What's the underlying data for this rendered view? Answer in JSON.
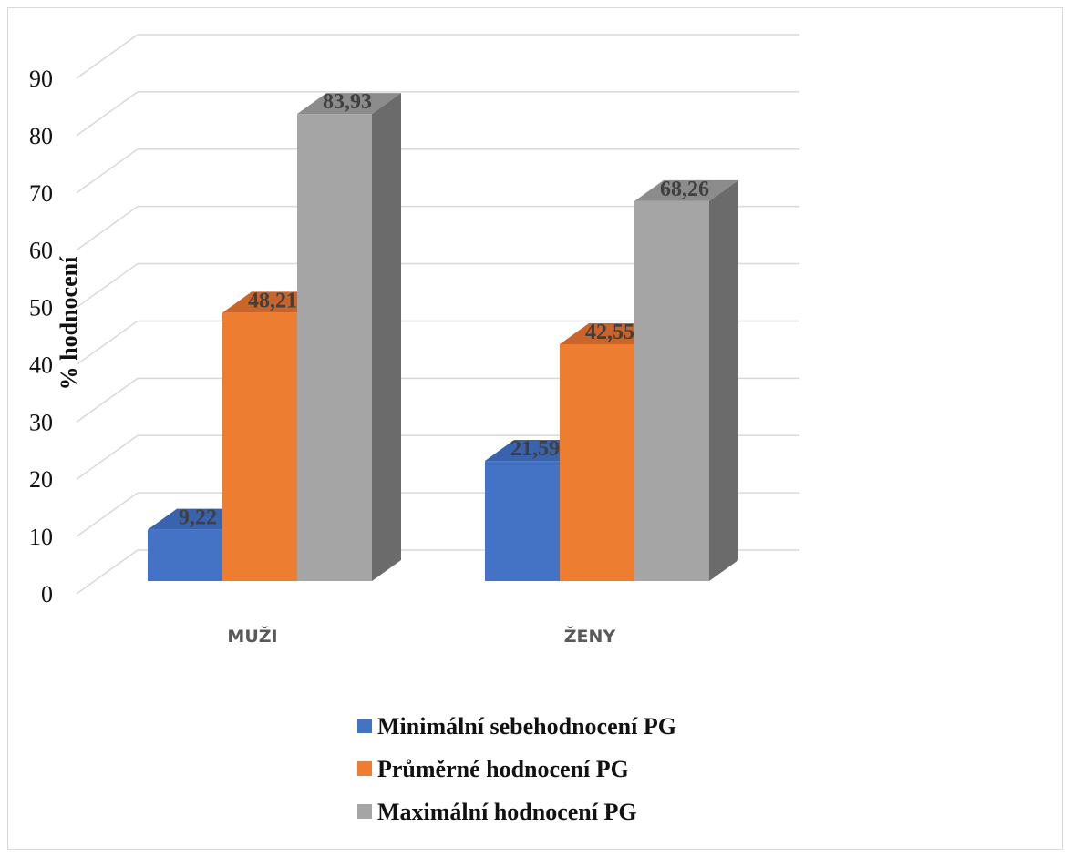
{
  "chart_data": {
    "type": "bar",
    "style": "3d-clustered-column",
    "categories": [
      "MUŽI",
      "ŽENY"
    ],
    "series": [
      {
        "name": "Minimální sebehodnocení PG",
        "values": [
          9.22,
          21.59
        ],
        "labels": [
          "9,22",
          "21,59"
        ],
        "color": "#4472c4",
        "side_color": "#2f5597",
        "top_color": "#3a63ad"
      },
      {
        "name": "Průměrné hodnocení PG",
        "values": [
          48.21,
          42.55
        ],
        "labels": [
          "48,21",
          "42,55"
        ],
        "color": "#ed7d31",
        "side_color": "#b85a1c",
        "top_color": "#c9642a"
      },
      {
        "name": "Maximální hodnocení PG",
        "values": [
          83.93,
          68.26
        ],
        "labels": [
          "83,93",
          "68,26"
        ],
        "color": "#a5a5a5",
        "side_color": "#6b6b6b",
        "top_color": "#8c8c8c"
      }
    ],
    "ylabel": "% hodnocení",
    "xlabel": "",
    "ylim": [
      0,
      90
    ],
    "yticks": [
      "0",
      "10",
      "20",
      "30",
      "40",
      "50",
      "60",
      "70",
      "80",
      "90"
    ],
    "grid": true,
    "legend_position": "bottom"
  }
}
